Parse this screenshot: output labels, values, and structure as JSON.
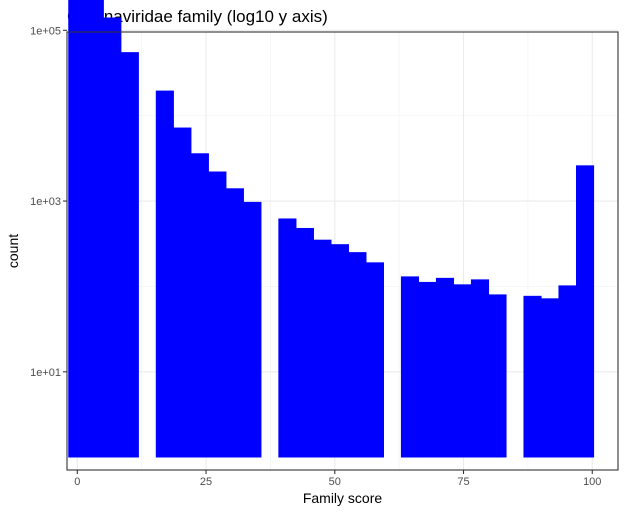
{
  "chart_data": {
    "type": "bar",
    "title": "Coronaviridae family (log10 y axis)",
    "xlabel": "Family score",
    "ylabel": "count",
    "y_scale": "log10",
    "xlim": [
      -2,
      105
    ],
    "ylim_log10": [
      -0.15,
      4.98
    ],
    "baseline": 1,
    "grid": true,
    "x_ticks": [
      {
        "value": 0,
        "label": "0"
      },
      {
        "value": 25,
        "label": "25"
      },
      {
        "value": 50,
        "label": "50"
      },
      {
        "value": 75,
        "label": "75"
      },
      {
        "value": 100,
        "label": "100"
      }
    ],
    "y_ticks": [
      {
        "value": 10,
        "label": "1e+01"
      },
      {
        "value": 1000,
        "label": "1e+03"
      },
      {
        "value": 100000,
        "label": "1e+05"
      }
    ],
    "bin_width": 3.4,
    "bar_color": "#0000ff",
    "bins": [
      {
        "x": 0.0,
        "count": 380000
      },
      {
        "x": 3.4,
        "count": 450000
      },
      {
        "x": 6.8,
        "count": 140000
      },
      {
        "x": 10.2,
        "count": 55000
      },
      {
        "x": 17.0,
        "count": 19500
      },
      {
        "x": 20.4,
        "count": 7200
      },
      {
        "x": 23.8,
        "count": 3600
      },
      {
        "x": 27.2,
        "count": 2200
      },
      {
        "x": 30.6,
        "count": 1400
      },
      {
        "x": 34.0,
        "count": 970
      },
      {
        "x": 40.8,
        "count": 620
      },
      {
        "x": 44.2,
        "count": 480
      },
      {
        "x": 47.6,
        "count": 350
      },
      {
        "x": 51.0,
        "count": 310
      },
      {
        "x": 54.4,
        "count": 250
      },
      {
        "x": 57.8,
        "count": 190
      },
      {
        "x": 64.6,
        "count": 130
      },
      {
        "x": 68.0,
        "count": 112
      },
      {
        "x": 71.4,
        "count": 125
      },
      {
        "x": 74.8,
        "count": 105
      },
      {
        "x": 78.2,
        "count": 120
      },
      {
        "x": 81.6,
        "count": 80
      },
      {
        "x": 88.4,
        "count": 77
      },
      {
        "x": 91.8,
        "count": 72
      },
      {
        "x": 95.2,
        "count": 102
      },
      {
        "x": 98.6,
        "count": 2600
      }
    ]
  }
}
